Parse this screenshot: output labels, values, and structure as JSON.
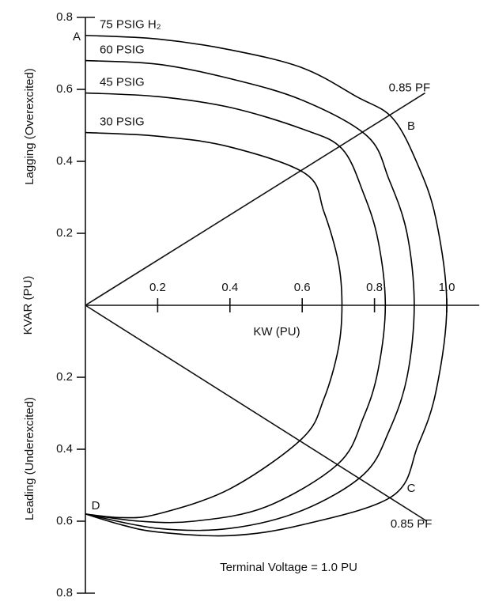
{
  "chart_data": {
    "type": "line",
    "y_label": "KVAR (PU)",
    "x_label": "KW (PU)",
    "y_upper_label": "Lagging (Overexcited)",
    "y_lower_label": "Leading (Underexcited)",
    "note": "Terminal Voltage = 1.0 PU",
    "xlim": [
      0,
      1.09
    ],
    "ylim": [
      -0.8,
      0.8
    ],
    "xticks": [
      0.2,
      0.4,
      0.6,
      0.8,
      {
        "value": 1.0,
        "label": "1.0"
      }
    ],
    "yticks": [
      0.8,
      0.6,
      0.4,
      0.2,
      {
        "value": -0.2,
        "label": "0.2"
      },
      {
        "value": -0.4,
        "label": "0.4"
      },
      {
        "value": -0.6,
        "label": "0.6"
      },
      {
        "value": -0.8,
        "label": "0.8"
      }
    ],
    "color": "#000000",
    "series": [
      {
        "name": "75 PSIG H₂",
        "x": [
          0,
          0.2,
          0.4,
          0.6,
          0.75,
          0.85,
          0.92,
          0.97,
          1.0,
          0.97,
          0.92,
          0.85,
          0.6,
          0.4,
          0.2,
          0.1,
          0
        ],
        "values": [
          0.75,
          0.74,
          0.71,
          0.66,
          0.58,
          0.52,
          0.39,
          0.24,
          0,
          -0.24,
          -0.39,
          -0.53,
          -0.61,
          -0.64,
          -0.63,
          -0.61,
          -0.58
        ]
      },
      {
        "name": "60 PSIG",
        "x": [
          0,
          0.2,
          0.4,
          0.6,
          0.78,
          0.84,
          0.89,
          0.91,
          0.89,
          0.84,
          0.77,
          0.6,
          0.4,
          0.2,
          0
        ],
        "values": [
          0.68,
          0.67,
          0.63,
          0.57,
          0.47,
          0.35,
          0.2,
          0,
          -0.2,
          -0.35,
          -0.47,
          -0.57,
          -0.62,
          -0.62,
          -0.58
        ]
      },
      {
        "name": "45 PSIG",
        "x": [
          0,
          0.2,
          0.4,
          0.6,
          0.71,
          0.77,
          0.81,
          0.83,
          0.81,
          0.77,
          0.7,
          0.5,
          0.3,
          0.15,
          0
        ],
        "values": [
          0.59,
          0.58,
          0.55,
          0.49,
          0.435,
          0.31,
          0.18,
          0,
          -0.18,
          -0.31,
          -0.44,
          -0.56,
          -0.6,
          -0.6,
          -0.58
        ]
      },
      {
        "name": "30 PSIG",
        "x": [
          0,
          0.2,
          0.4,
          0.61,
          0.66,
          0.7,
          0.71,
          0.7,
          0.66,
          0.6,
          0.4,
          0.2,
          0.1,
          0
        ],
        "values": [
          0.48,
          0.47,
          0.44,
          0.365,
          0.26,
          0.12,
          0,
          -0.12,
          -0.26,
          -0.37,
          -0.51,
          -0.58,
          -0.59,
          -0.58
        ]
      }
    ],
    "pf_lines": [
      {
        "label": "0.85 PF",
        "x": [
          0,
          0.94
        ],
        "values": [
          0,
          0.59
        ]
      },
      {
        "label": "0.85 PF",
        "x": [
          0,
          0.945
        ],
        "values": [
          0,
          -0.6
        ]
      }
    ],
    "point_labels": [
      "A",
      "B",
      "C",
      "D"
    ]
  }
}
